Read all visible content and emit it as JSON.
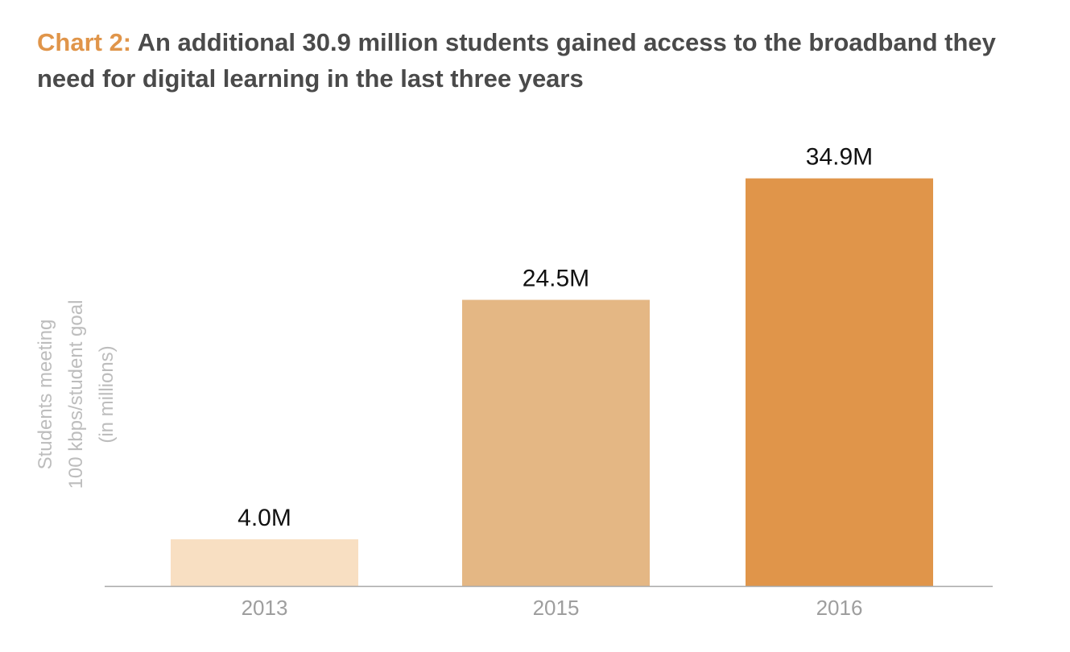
{
  "title": {
    "prefix": "Chart 2:",
    "text": "An additional 30.9 million students gained access to the broadband they need for digital learning in the last three years"
  },
  "chart_data": {
    "type": "bar",
    "categories": [
      "2013",
      "2015",
      "2016"
    ],
    "values": [
      4.0,
      24.5,
      34.9
    ],
    "data_labels": [
      "4.0M",
      "24.5M",
      "34.9M"
    ],
    "colors": [
      "#f8dfc2",
      "#e4b784",
      "#e0954a"
    ],
    "title": "Chart 2: An additional 30.9 million students gained access to the broadband they need for digital learning in the last three years",
    "xlabel": "",
    "ylabel": [
      "Students meeting",
      "100 kbps/student goal",
      "(in millions)"
    ],
    "ylim": [
      0,
      38.8
    ],
    "grid": false,
    "legend": "none"
  }
}
